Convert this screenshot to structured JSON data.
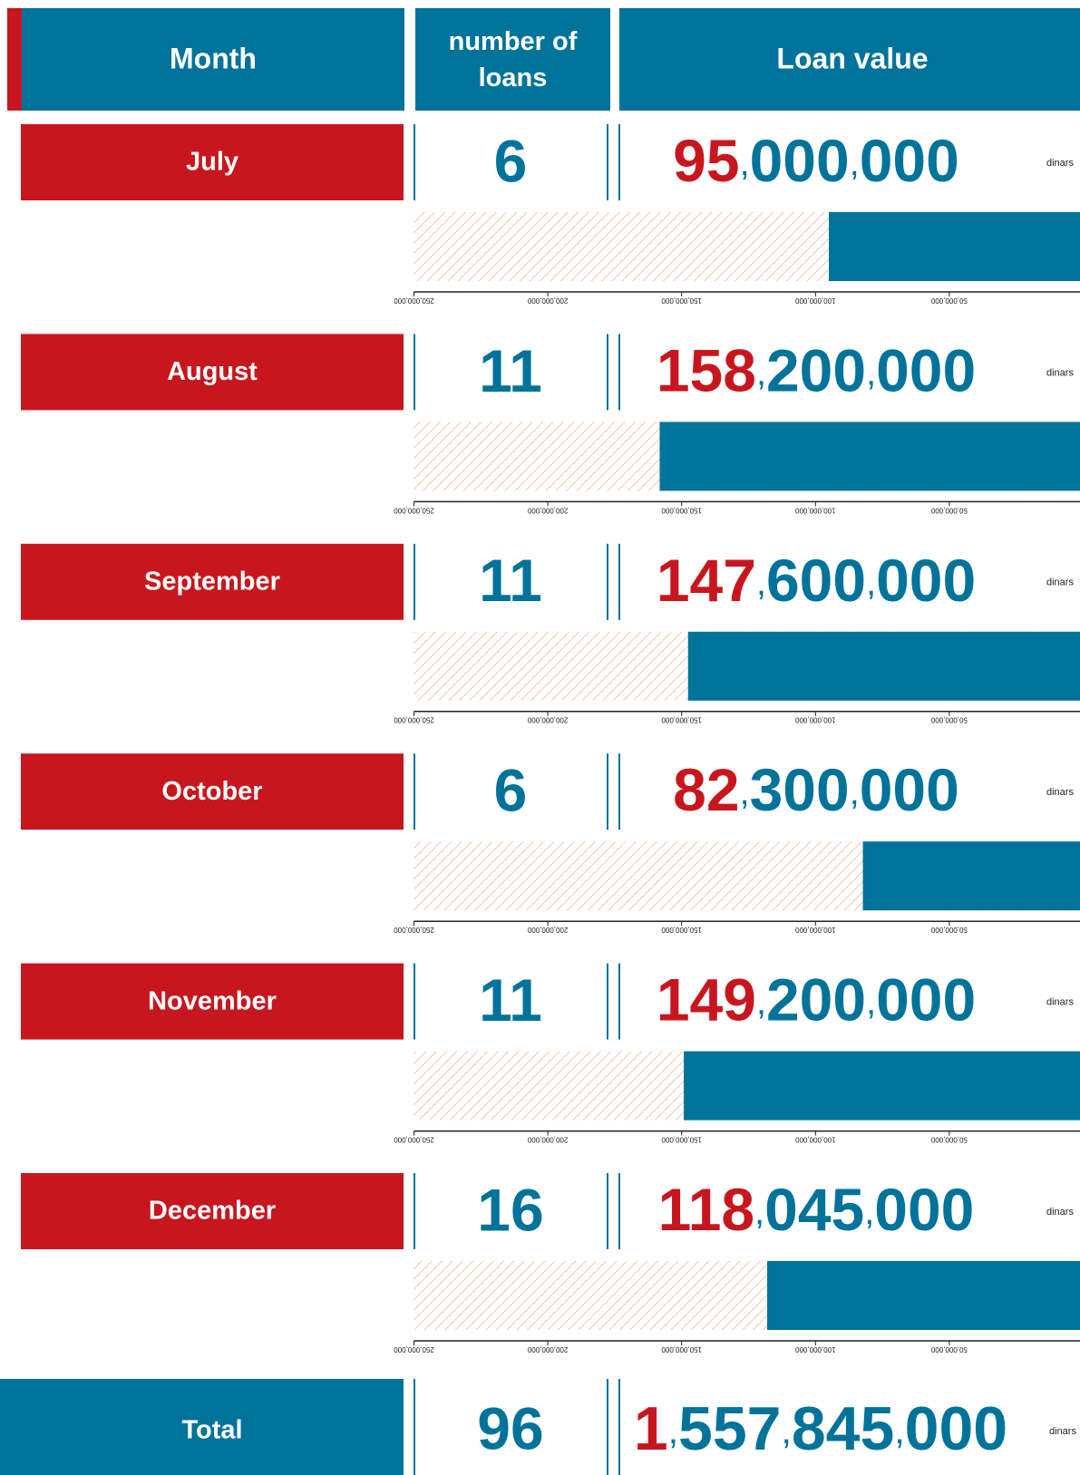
{
  "header": {
    "month": "Month",
    "loans": "number of loans",
    "value": "Loan value"
  },
  "unit": "dinars",
  "axis": {
    "range": [
      0,
      250000000
    ],
    "ticks": [
      {
        "value": 250000000,
        "label": "250,000,000"
      },
      {
        "value": 200000000,
        "label": "200,000,000"
      },
      {
        "value": 150000000,
        "label": "150,000,000"
      },
      {
        "value": 100000000,
        "label": "100,000,000"
      },
      {
        "value": 50000000,
        "label": "50,000,000"
      }
    ]
  },
  "rows": [
    {
      "month": "July",
      "loans": 6,
      "value": 95000000,
      "value_label": "95,000,000"
    },
    {
      "month": "August",
      "loans": 11,
      "value": 158200000,
      "value_label": "158,200,000"
    },
    {
      "month": "September",
      "loans": 11,
      "value": 147600000,
      "value_label": "147,600,000"
    },
    {
      "month": "October",
      "loans": 6,
      "value": 82300000,
      "value_label": "82,300,000"
    },
    {
      "month": "November",
      "loans": 11,
      "value": 149200000,
      "value_label": "149,200,000"
    },
    {
      "month": "December",
      "loans": 16,
      "value": 118045000,
      "value_label": "118,045,000"
    }
  ],
  "total": {
    "label": "Total",
    "loans": 96,
    "value": 1557845000,
    "value_label": "1,557,845,000"
  }
}
